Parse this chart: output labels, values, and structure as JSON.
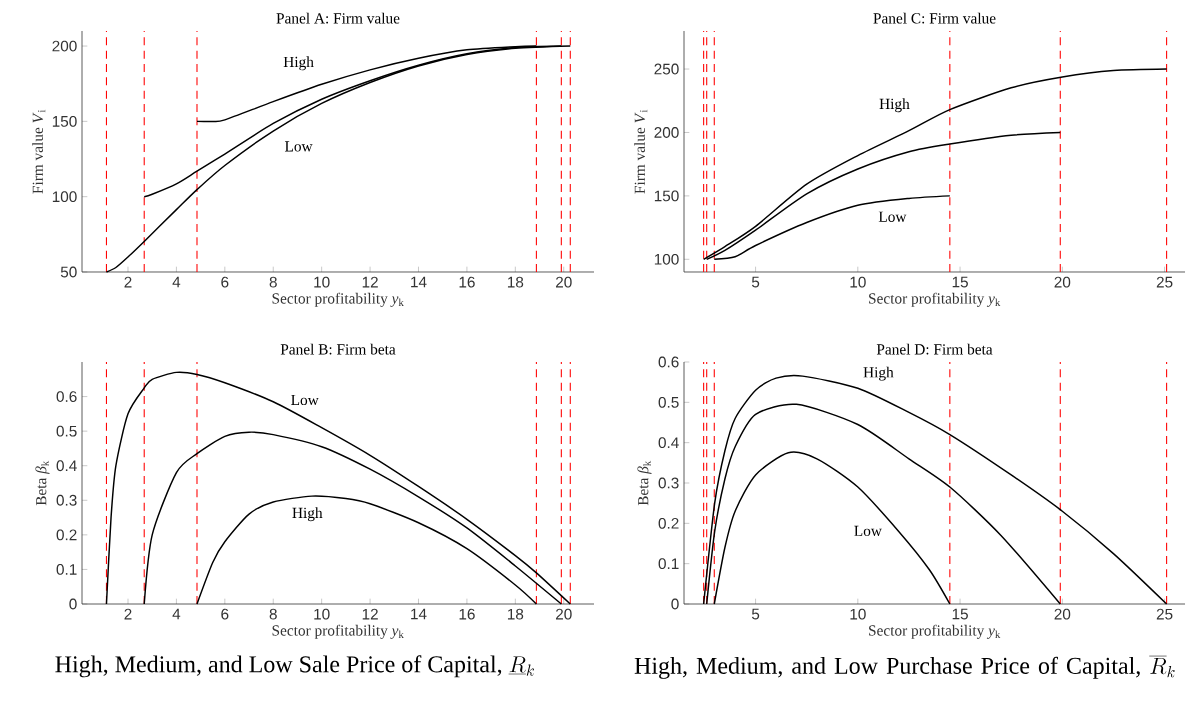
{
  "chart_data": [
    {
      "type": "line",
      "title": "Panel A: Firm value",
      "xlabel": "Sector profitability *y*$_{k}$",
      "ylabel": "Firm value *V*$_{i}$",
      "xlim": [
        0.1,
        21.25
      ],
      "ylim": [
        50,
        210
      ],
      "xticks": [
        2,
        4,
        6,
        8,
        10,
        12,
        14,
        16,
        18,
        20
      ],
      "yticks": [
        50,
        100,
        150,
        200
      ],
      "line_style": "solid",
      "series": [
        {
          "color": "#000000",
          "x": [
            4.85,
            5.5,
            6,
            8,
            10,
            12,
            14,
            16,
            18,
            18.87
          ],
          "values": [
            150,
            149.9,
            151,
            163.1,
            174.6,
            184.2,
            191.9,
            197.5,
            199.6,
            200
          ]
        },
        {
          "color": "#000000",
          "x": [
            2.67,
            3,
            4,
            4.85,
            6,
            8,
            10,
            12,
            14,
            16,
            18,
            19.9
          ],
          "values": [
            100,
            101.6,
            108.5,
            116.9,
            128.3,
            148.6,
            164.7,
            177,
            187.3,
            194.9,
            199,
            200
          ]
        },
        {
          "color": "#000000",
          "x": [
            1.11,
            1.5,
            2,
            2.67,
            4,
            4.85,
            6,
            8,
            10,
            12,
            14,
            16,
            18,
            20.27
          ],
          "values": [
            50,
            53,
            60,
            70.3,
            91.4,
            104.7,
            120.7,
            143.6,
            161.9,
            175.8,
            186.8,
            194.4,
            198.5,
            200
          ]
        }
      ],
      "ref_lines": [
        {
          "axis": "x",
          "value": 1.11,
          "color": "#ff0000",
          "line_style": "dashed"
        },
        {
          "axis": "x",
          "value": 2.67,
          "color": "#ff0000",
          "line_style": "dashed"
        },
        {
          "axis": "x",
          "value": 4.85,
          "color": "#ff0000",
          "line_style": "dashed"
        },
        {
          "axis": "x",
          "value": 18.87,
          "color": "#ff0000",
          "line_style": "dashed"
        },
        {
          "axis": "x",
          "value": 19.9,
          "color": "#ff0000",
          "line_style": "dashed"
        },
        {
          "axis": "x",
          "value": 20.27,
          "color": "#ff0000",
          "line_style": "dashed"
        }
      ],
      "annotations": [
        "High",
        "Low"
      ]
    },
    {
      "type": "line",
      "title": "Panel C: Firm value",
      "xlabel": "Sector profitability *y*$_{k}$",
      "ylabel": "Firm value *V*$_{i}$",
      "xlim": [
        1.5,
        26
      ],
      "ylim": [
        90,
        280
      ],
      "xticks": [
        5,
        10,
        15,
        20,
        25
      ],
      "yticks": [
        100,
        150,
        200,
        250
      ],
      "line_style": "solid",
      "series": [
        {
          "color": "#000000",
          "x": [
            2.46,
            3.5,
            5,
            7.5,
            10,
            12.5,
            14.5,
            17.5,
            20,
            22.5,
            25.1
          ],
          "values": [
            100,
            110,
            126,
            159.2,
            181.8,
            201.4,
            218,
            235.2,
            243.7,
            248.8,
            250
          ]
        },
        {
          "color": "#000000",
          "x": [
            2.61,
            3.5,
            5,
            7.5,
            10,
            12.5,
            14.5,
            17.5,
            19.9
          ],
          "values": [
            100,
            107,
            123,
            151.6,
            171.2,
            184.8,
            190.9,
            197.8,
            200
          ]
        },
        {
          "color": "#000000",
          "x": [
            2.98,
            4,
            5,
            7.5,
            10,
            12.5,
            14.5
          ],
          "values": [
            100,
            102,
            110.9,
            129,
            142.6,
            148,
            150
          ]
        }
      ],
      "ref_lines": [
        {
          "axis": "x",
          "value": 2.46,
          "color": "#ff0000",
          "line_style": "dashed"
        },
        {
          "axis": "x",
          "value": 2.61,
          "color": "#ff0000",
          "line_style": "dashed"
        },
        {
          "axis": "x",
          "value": 2.98,
          "color": "#ff0000",
          "line_style": "dashed"
        },
        {
          "axis": "x",
          "value": 14.5,
          "color": "#ff0000",
          "line_style": "dashed"
        },
        {
          "axis": "x",
          "value": 19.9,
          "color": "#ff0000",
          "line_style": "dashed"
        },
        {
          "axis": "x",
          "value": 25.1,
          "color": "#ff0000",
          "line_style": "dashed"
        }
      ],
      "annotations": [
        "High",
        "Low"
      ]
    },
    {
      "type": "line",
      "title": "Panel B: Firm beta",
      "xlabel": "Sector profitability *y*$_{k}$",
      "ylabel": "Beta *β*$_{k}$",
      "xlim": [
        0.1,
        21.25
      ],
      "ylim": [
        0,
        0.7
      ],
      "xticks": [
        2,
        4,
        6,
        8,
        10,
        12,
        14,
        16,
        18,
        20
      ],
      "yticks": [
        0,
        0.1,
        0.2,
        0.3,
        0.4,
        0.5,
        0.6
      ],
      "line_style": "solid",
      "series": [
        {
          "color": "#000000",
          "x": [
            4.85,
            5.5,
            6,
            7,
            8,
            9.6,
            11,
            12,
            14,
            16,
            18,
            18.87
          ],
          "values": [
            0,
            0.12,
            0.18,
            0.26,
            0.295,
            0.312,
            0.305,
            0.29,
            0.235,
            0.16,
            0.055,
            0
          ]
        },
        {
          "color": "#000000",
          "x": [
            2.67,
            3,
            4,
            4.85,
            6,
            7,
            8,
            10,
            12,
            14,
            16,
            18,
            19.9
          ],
          "values": [
            0,
            0.2,
            0.38,
            0.435,
            0.485,
            0.497,
            0.49,
            0.455,
            0.39,
            0.31,
            0.22,
            0.11,
            0
          ]
        },
        {
          "color": "#000000",
          "x": [
            1.11,
            1.3,
            1.5,
            2,
            2.67,
            3,
            4,
            4.85,
            6,
            8,
            10,
            12,
            14,
            16,
            18,
            18.87,
            20.27
          ],
          "values": [
            0,
            0.25,
            0.4,
            0.55,
            0.625,
            0.65,
            0.67,
            0.664,
            0.64,
            0.585,
            0.51,
            0.43,
            0.34,
            0.245,
            0.14,
            0.09,
            0
          ]
        }
      ],
      "ref_lines": [
        {
          "axis": "x",
          "value": 1.11,
          "color": "#ff0000",
          "line_style": "dashed"
        },
        {
          "axis": "x",
          "value": 2.67,
          "color": "#ff0000",
          "line_style": "dashed"
        },
        {
          "axis": "x",
          "value": 4.85,
          "color": "#ff0000",
          "line_style": "dashed"
        },
        {
          "axis": "x",
          "value": 18.87,
          "color": "#ff0000",
          "line_style": "dashed"
        },
        {
          "axis": "x",
          "value": 19.9,
          "color": "#ff0000",
          "line_style": "dashed"
        },
        {
          "axis": "x",
          "value": 20.27,
          "color": "#ff0000",
          "line_style": "dashed"
        }
      ],
      "annotations": [
        "Low",
        "High",
        "High, Medium, and Low Sale Price of Capital,",
        "\\underline{R}_k"
      ]
    },
    {
      "type": "line",
      "title": "Panel D: Firm beta",
      "xlabel": "Sector profitability *y*$_{k}$",
      "ylabel": "Beta *β*$_{k}$",
      "xlim": [
        1.5,
        26
      ],
      "ylim": [
        0,
        0.6
      ],
      "xticks": [
        5,
        10,
        15,
        20,
        25
      ],
      "yticks": [
        0,
        0.1,
        0.2,
        0.3,
        0.4,
        0.5,
        0.6
      ],
      "line_style": "solid",
      "series": [
        {
          "color": "#000000",
          "x": [
            2.46,
            3,
            3.5,
            4,
            5,
            6,
            7.3,
            10,
            12.5,
            14.5,
            17.5,
            20,
            22.5,
            25.1
          ],
          "values": [
            0,
            0.25,
            0.38,
            0.46,
            0.53,
            0.56,
            0.565,
            0.535,
            0.475,
            0.42,
            0.32,
            0.23,
            0.125,
            0
          ]
        },
        {
          "color": "#000000",
          "x": [
            2.61,
            3,
            3.5,
            4,
            5,
            7,
            10,
            12.5,
            14.5,
            17,
            19.9
          ],
          "values": [
            0,
            0.18,
            0.31,
            0.39,
            0.47,
            0.495,
            0.445,
            0.36,
            0.29,
            0.17,
            0
          ]
        },
        {
          "color": "#000000",
          "x": [
            2.98,
            3.5,
            4,
            5,
            6.6,
            8,
            10,
            12,
            13.5,
            14.5
          ],
          "values": [
            0,
            0.14,
            0.23,
            0.32,
            0.375,
            0.36,
            0.29,
            0.18,
            0.085,
            0
          ]
        }
      ],
      "ref_lines": [
        {
          "axis": "x",
          "value": 2.46,
          "color": "#ff0000",
          "line_style": "dashed"
        },
        {
          "axis": "x",
          "value": 2.61,
          "color": "#ff0000",
          "line_style": "dashed"
        },
        {
          "axis": "x",
          "value": 2.98,
          "color": "#ff0000",
          "line_style": "dashed"
        },
        {
          "axis": "x",
          "value": 14.5,
          "color": "#ff0000",
          "line_style": "dashed"
        },
        {
          "axis": "x",
          "value": 19.9,
          "color": "#ff0000",
          "line_style": "dashed"
        },
        {
          "axis": "x",
          "value": 25.1,
          "color": "#ff0000",
          "line_style": "dashed"
        }
      ],
      "annotations": [
        "High",
        "Low",
        "High, Medium, and Low Purchase Price of Capital,",
        "\\overline{R}_k"
      ]
    }
  ]
}
